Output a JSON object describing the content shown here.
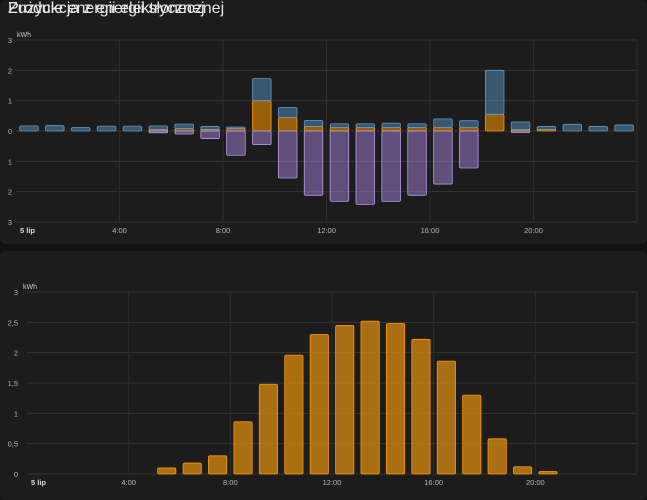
{
  "charts": [
    {
      "title": "Zużycie energii elektrycznej",
      "unit": "kWh"
    },
    {
      "title": "Produkcja z energii słonecznej",
      "unit": "kWh"
    }
  ],
  "colors": {
    "grid_import": "#4c7ea6",
    "solar": "#ff9800",
    "export": "#a182d8",
    "solar_bar": "#d98b10"
  },
  "chart_data": [
    {
      "type": "bar",
      "title": "Zużycie energii elektrycznej",
      "ylabel": "kWh",
      "ylim": [
        -3,
        3
      ],
      "y_ticks": [
        "3",
        "2",
        "1",
        "0",
        "1",
        "2",
        "3"
      ],
      "x_tick_labels": [
        "5 lip",
        "4:00",
        "8:00",
        "12:00",
        "16:00",
        "20:00"
      ],
      "x_tick_hours": [
        0,
        4,
        8,
        12,
        16,
        20
      ],
      "hours": [
        0,
        1,
        2,
        3,
        4,
        5,
        6,
        7,
        8,
        9,
        10,
        11,
        12,
        13,
        14,
        15,
        16,
        17,
        18,
        19,
        20,
        21,
        22,
        23
      ],
      "series": [
        {
          "values": [
            0.17,
            0.18,
            0.12,
            0.16,
            0.16,
            0.12,
            0.15,
            0.1,
            0.05,
            0.73,
            0.33,
            0.2,
            0.12,
            0.12,
            0.14,
            0.12,
            0.28,
            0.22,
            1.45,
            0.25,
            0.1,
            0.22,
            0.15,
            0.2
          ]
        },
        {
          "values": [
            0,
            0,
            0,
            0,
            0,
            0.05,
            0.08,
            0.05,
            0.08,
            1.0,
            0.45,
            0.15,
            0.12,
            0.12,
            0.12,
            0.12,
            0.12,
            0.12,
            0.55,
            0.05,
            0.05,
            0,
            0,
            0
          ]
        },
        {
          "values": [
            0,
            0,
            0,
            0,
            0,
            -0.06,
            -0.1,
            -0.25,
            -0.8,
            -0.45,
            -1.55,
            -2.12,
            -2.32,
            -2.42,
            -2.32,
            -2.12,
            -1.75,
            -1.22,
            0,
            -0.05,
            0,
            0,
            0,
            0
          ]
        }
      ]
    },
    {
      "type": "bar",
      "title": "Produkcja z energii słonecznej",
      "ylabel": "kWh",
      "ylim": [
        0,
        3
      ],
      "y_ticks": [
        "3",
        "2,5",
        "2",
        "1,5",
        "1",
        "0,5",
        "0"
      ],
      "x_tick_labels": [
        "5 lip",
        "4:00",
        "8:00",
        "12:00",
        "16:00",
        "20:00"
      ],
      "x_tick_hours": [
        0,
        4,
        8,
        12,
        16,
        20
      ],
      "hours": [
        0,
        1,
        2,
        3,
        4,
        5,
        6,
        7,
        8,
        9,
        10,
        11,
        12,
        13,
        14,
        15,
        16,
        17,
        18,
        19,
        20,
        21,
        22,
        23
      ],
      "values": [
        0,
        0,
        0,
        0,
        0,
        0.1,
        0.18,
        0.3,
        0.86,
        1.48,
        1.96,
        2.3,
        2.45,
        2.52,
        2.48,
        2.22,
        1.86,
        1.3,
        0.58,
        0.12,
        0.04,
        0,
        0,
        0
      ]
    }
  ]
}
